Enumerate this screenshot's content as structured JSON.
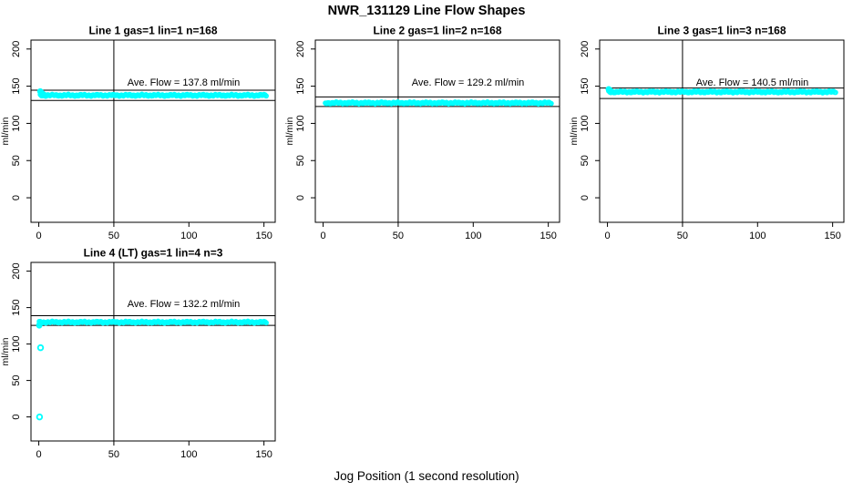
{
  "chart_data": {
    "type": "scatter",
    "title": "NWR_131129  Line Flow Shapes",
    "xlabel": "Jog Position (1 second resolution)",
    "ylabel": "ml/min",
    "xticks": [
      0,
      50,
      100,
      150
    ],
    "yticks": [
      0,
      50,
      100,
      150,
      200
    ],
    "xlim": [
      -5.2,
      157.5
    ],
    "ylim": [
      -33,
      212
    ],
    "vline_x": 50,
    "tolerance_pct": 5,
    "point_color": "#00ffff",
    "axis_color": "#000000",
    "background": "#ffffff",
    "panels": [
      {
        "title": "Line 1 gas=1 lin=1 n=168",
        "n": 168,
        "ave_flow": 137.8,
        "ave_flow_label": "Ave. Flow =  137.8  ml/min",
        "band": {
          "x_start": 1,
          "x_end": 152,
          "level": 137.8
        },
        "start_points": [
          [
            1,
            143
          ],
          [
            1.3,
            142.2
          ],
          [
            1.7,
            141.3
          ],
          [
            2.2,
            140.3
          ],
          [
            2.8,
            139.3
          ],
          [
            3.5,
            138.6
          ]
        ],
        "outliers": []
      },
      {
        "title": "Line 2 gas=1 lin=2 n=168",
        "n": 168,
        "ave_flow": 129.2,
        "ave_flow_label": "Ave. Flow =  129.2  ml/min",
        "band": {
          "x_start": 1.5,
          "x_end": 152.5,
          "level": 127.5
        },
        "start_points": [],
        "outliers": []
      },
      {
        "title": "Line 3 gas=1 lin=3 n=168",
        "n": 168,
        "ave_flow": 140.5,
        "ave_flow_label": "Ave. Flow =  140.5  ml/min",
        "band": {
          "x_start": 0.8,
          "x_end": 152,
          "level": 142.3
        },
        "start_points": [
          [
            0.8,
            146
          ],
          [
            1.2,
            145.2
          ],
          [
            1.7,
            144.3
          ],
          [
            2.3,
            143.4
          ]
        ],
        "outliers": []
      },
      {
        "title": "Line 4 (LT) gas=1 lin=4 n=3",
        "n": 3,
        "ave_flow": 132.2,
        "ave_flow_label": "Ave. Flow =  132.2  ml/min",
        "band": {
          "x_start": 0.3,
          "x_end": 152,
          "level": 130
        },
        "start_points": [
          [
            0.3,
            125.5
          ],
          [
            0.6,
            127.5
          ],
          [
            1,
            128.8
          ]
        ],
        "outliers": [
          [
            0.5,
            0
          ],
          [
            1.2,
            95
          ]
        ]
      }
    ]
  }
}
